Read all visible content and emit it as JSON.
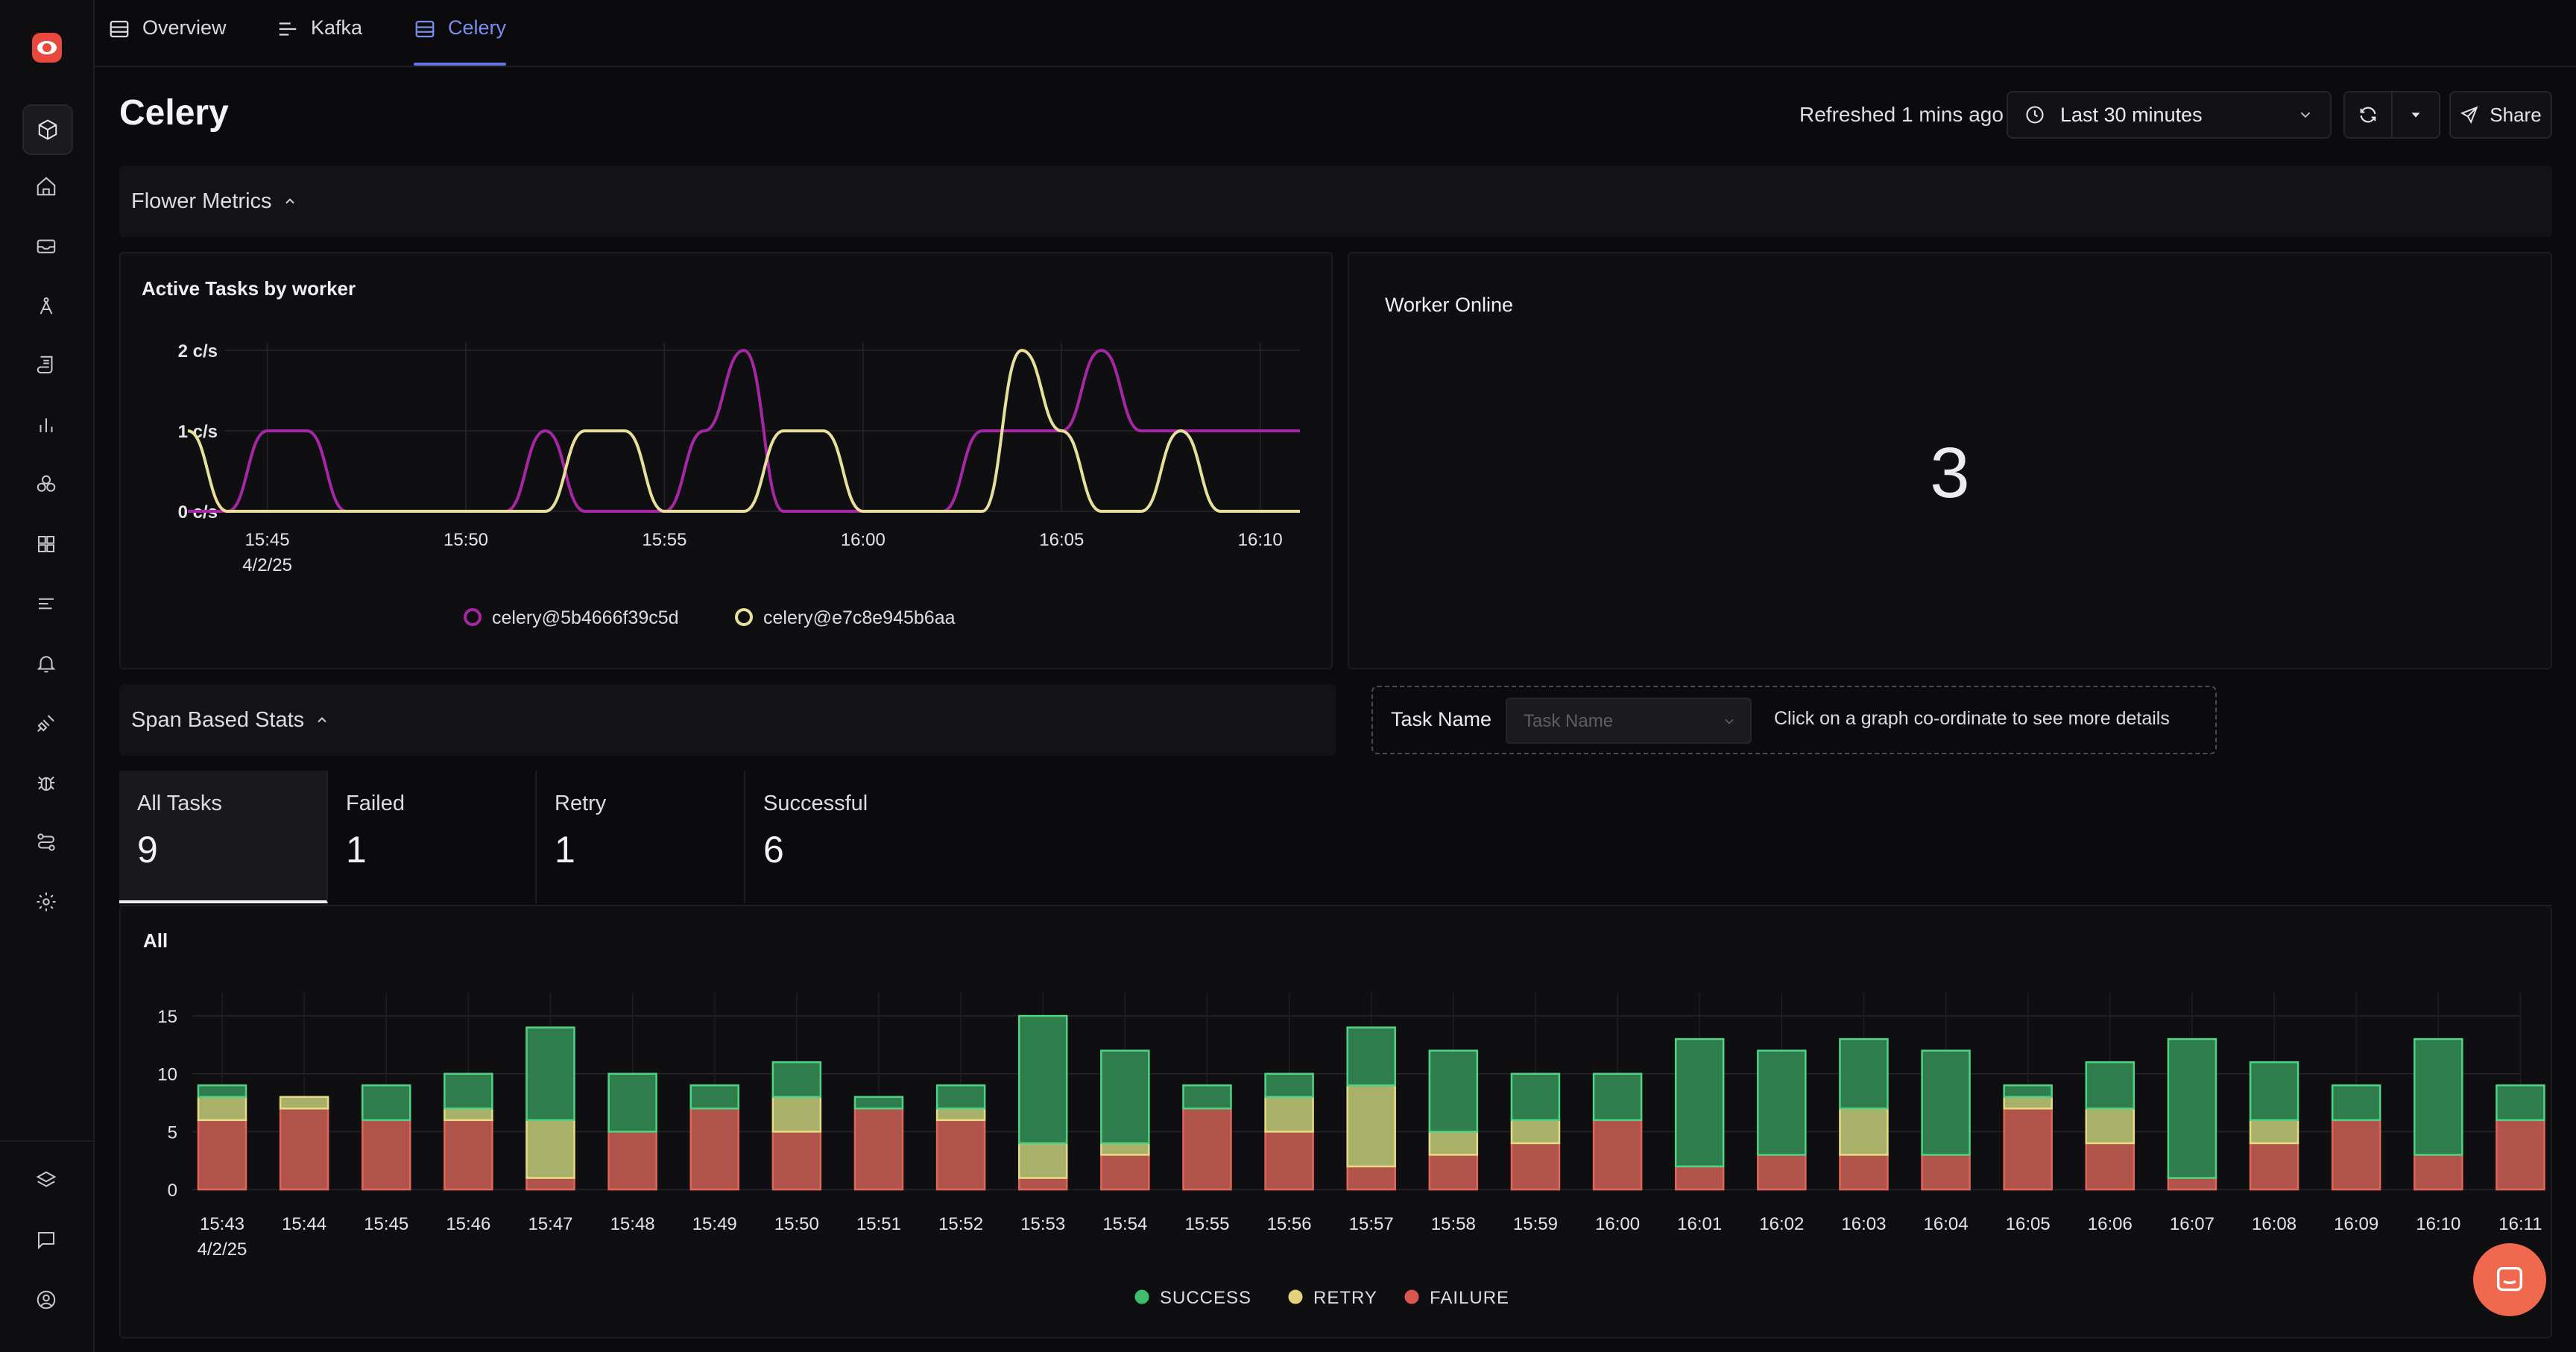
{
  "tabs": [
    {
      "label": "Overview",
      "icon": "table-icon",
      "active": false
    },
    {
      "label": "Kafka",
      "icon": "list-icon",
      "active": false
    },
    {
      "label": "Celery",
      "icon": "table-icon",
      "active": true
    }
  ],
  "header": {
    "title": "Celery",
    "refreshed": "Refreshed 1 mins ago",
    "time_range": "Last 30 minutes",
    "share_label": "Share"
  },
  "sidebar": {
    "icons": [
      "cube-icon",
      "home-icon",
      "inbox-icon",
      "compass-icon",
      "scroll-icon",
      "bar-chart-icon",
      "hexagons-icon",
      "grid-icon",
      "list-icon",
      "bell-icon",
      "plug-icon",
      "bug-icon",
      "route-icon",
      "gear-icon",
      "layers-icon",
      "message-icon",
      "user-circle-icon"
    ],
    "active": "cube-icon"
  },
  "sections": {
    "flower": "Flower Metrics",
    "span": "Span Based Stats"
  },
  "active_tasks": {
    "title": "Active Tasks by worker",
    "y_ticks": [
      "2 c/s",
      "1 c/s",
      "0 c/s"
    ],
    "x_ticks": [
      "15:45",
      "15:50",
      "15:55",
      "16:00",
      "16:05",
      "16:10"
    ],
    "x_date": "4/2/25",
    "legend": [
      "celery@5b4666f39c5d",
      "celery@e7c8e945b6aa"
    ]
  },
  "worker_online": {
    "title": "Worker Online",
    "value": "3"
  },
  "filter": {
    "label": "Task Name",
    "placeholder": "Task Name",
    "hint": "Click on a graph co-ordinate to see more details"
  },
  "stats": [
    {
      "label": "All Tasks",
      "value": "9",
      "active": true
    },
    {
      "label": "Failed",
      "value": "1",
      "active": false
    },
    {
      "label": "Retry",
      "value": "1",
      "active": false
    },
    {
      "label": "Successful",
      "value": "6",
      "active": false
    }
  ],
  "colors": {
    "series_a": "#a626a4",
    "series_b": "#e8e09a",
    "success": "#3fbf6e",
    "retry": "#e3d27a",
    "failure": "#d9574e",
    "accent": "#6574e6"
  },
  "chart_data": [
    {
      "type": "line",
      "title": "Active Tasks by worker",
      "ylabel": "c/s",
      "ylim": [
        0,
        2
      ],
      "x": [
        "15:43",
        "15:44",
        "15:45",
        "15:46",
        "15:47",
        "15:48",
        "15:49",
        "15:50",
        "15:51",
        "15:52",
        "15:53",
        "15:54",
        "15:55",
        "15:56",
        "15:57",
        "15:58",
        "15:59",
        "16:00",
        "16:01",
        "16:02",
        "16:03",
        "16:04",
        "16:05",
        "16:06",
        "16:07",
        "16:08",
        "16:09",
        "16:10",
        "16:11"
      ],
      "series": [
        {
          "name": "celery@5b4666f39c5d",
          "values": [
            0,
            0,
            1,
            1,
            0,
            0,
            0,
            0,
            0,
            1,
            0,
            0,
            0,
            1,
            2,
            0,
            0,
            0,
            0,
            0,
            1,
            1,
            1,
            2,
            1,
            1,
            1,
            1,
            1
          ]
        },
        {
          "name": "celery@e7c8e945b6aa",
          "values": [
            1,
            0,
            0,
            0,
            0,
            0,
            0,
            0,
            0,
            0,
            1,
            1,
            0,
            0,
            0,
            1,
            1,
            0,
            0,
            0,
            0,
            2,
            1,
            0,
            0,
            1,
            0,
            0,
            0
          ]
        }
      ],
      "grid": true,
      "legend_position": "bottom"
    },
    {
      "type": "bar",
      "title": "All",
      "stacked": true,
      "ylim": [
        0,
        17
      ],
      "y_ticks": [
        0,
        5,
        10,
        15
      ],
      "x_date": "4/2/25",
      "categories": [
        "15:43",
        "15:44",
        "15:45",
        "15:46",
        "15:47",
        "15:48",
        "15:49",
        "15:50",
        "15:51",
        "15:52",
        "15:53",
        "15:54",
        "15:55",
        "15:56",
        "15:57",
        "15:58",
        "15:59",
        "16:00",
        "16:01",
        "16:02",
        "16:03",
        "16:04",
        "16:05",
        "16:06",
        "16:07",
        "16:08",
        "16:09",
        "16:10",
        "16:11"
      ],
      "series": [
        {
          "name": "FAILURE",
          "values": [
            6,
            7,
            6,
            6,
            1,
            5,
            7,
            5,
            7,
            6,
            1,
            3,
            7,
            5,
            2,
            3,
            4,
            6,
            2,
            3,
            3,
            3,
            7,
            4,
            1,
            4,
            6,
            3,
            6
          ]
        },
        {
          "name": "RETRY",
          "values": [
            2,
            1,
            0,
            1,
            5,
            0,
            0,
            3,
            0,
            1,
            3,
            1,
            0,
            3,
            7,
            2,
            2,
            0,
            0,
            0,
            4,
            0,
            1,
            3,
            0,
            2,
            0,
            0,
            0
          ]
        },
        {
          "name": "SUCCESS",
          "values": [
            1,
            0,
            3,
            3,
            8,
            5,
            2,
            3,
            1,
            2,
            11,
            8,
            2,
            2,
            5,
            7,
            4,
            4,
            11,
            9,
            6,
            9,
            1,
            4,
            12,
            5,
            3,
            10,
            3
          ]
        }
      ],
      "legend": [
        "SUCCESS",
        "RETRY",
        "FAILURE"
      ],
      "grid": true,
      "legend_position": "bottom"
    }
  ]
}
